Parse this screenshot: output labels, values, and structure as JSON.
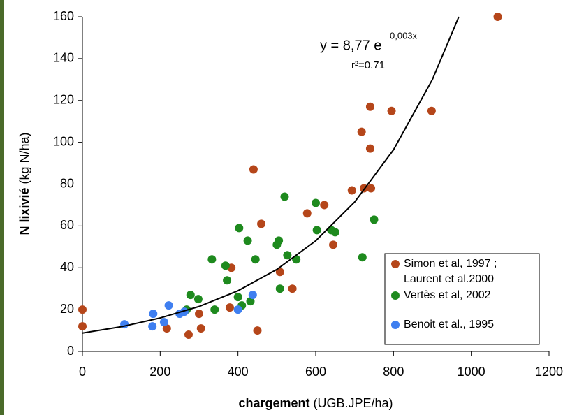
{
  "chart_data": {
    "type": "scatter",
    "xlabel_bold": "chargement",
    "xlabel": "(UGB.JPE/ha)",
    "ylabel_bold": "N lixivié",
    "ylabel": "(kg N/ha)",
    "annotations": {
      "equation_base": "y = 8,77 e",
      "equation_exp": "0,003x",
      "r2": "r²=0.71"
    },
    "xlim": [
      0,
      1200
    ],
    "xticks": [
      0,
      200,
      400,
      600,
      800,
      1000,
      1200
    ],
    "ylim": [
      0,
      160
    ],
    "yticks": [
      0,
      20,
      40,
      60,
      80,
      100,
      120,
      140,
      160
    ],
    "grid": false,
    "legend": "lower right",
    "series": [
      {
        "name": "Simon et al, 1997 ; Laurent et al.2000",
        "color": "#b5461a",
        "x": [
          0,
          0,
          217,
          273,
          300,
          305,
          379,
          383,
          440,
          450,
          460,
          508,
          540,
          578,
          622,
          645,
          693,
          718,
          724,
          740,
          740,
          742,
          795,
          898,
          1068
        ],
        "values": [
          20,
          12,
          11,
          8,
          18,
          11,
          21,
          40,
          87,
          10,
          61,
          38,
          30,
          66,
          70,
          51,
          77,
          105,
          78,
          117,
          97,
          78,
          115,
          115,
          160
        ]
      },
      {
        "name": "Vertès et al, 2002",
        "color": "#1e8a1e",
        "x": [
          268,
          278,
          298,
          333,
          340,
          368,
          372,
          400,
          403,
          410,
          425,
          432,
          445,
          500,
          505,
          508,
          520,
          527,
          550,
          600,
          603,
          640,
          650,
          720,
          750
        ],
        "values": [
          20,
          27,
          25,
          44,
          20,
          41,
          34,
          26,
          59,
          22,
          53,
          24,
          44,
          51,
          53,
          30,
          74,
          46,
          44,
          71,
          58,
          58,
          57,
          45,
          63
        ]
      },
      {
        "name": "Benoit et al., 1995",
        "color": "#3f7ff0",
        "x": [
          108,
          180,
          182,
          210,
          222,
          250,
          262,
          400,
          438
        ],
        "values": [
          13,
          12,
          18,
          14,
          22,
          18,
          19,
          20,
          27
        ]
      },
      {
        "type": "line",
        "color": "#000000",
        "x": [
          0,
          100,
          200,
          300,
          400,
          500,
          600,
          700,
          800,
          900,
          968
        ],
        "values": [
          8.77,
          11.8,
          16.0,
          21.5,
          29.0,
          39.2,
          52.9,
          71.4,
          96.4,
          130.0,
          160
        ]
      }
    ]
  }
}
